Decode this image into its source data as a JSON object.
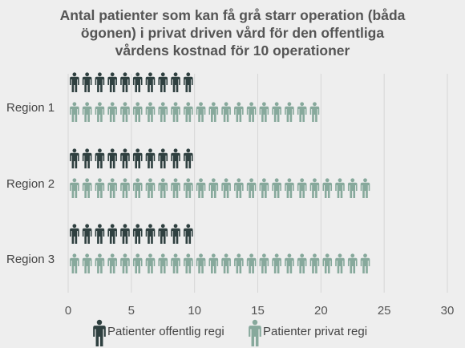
{
  "chart_data": {
    "type": "pictogram-bar",
    "title": [
      "Antal patienter som kan få grå starr operation (båda",
      "ögonen) i privat driven vård för den offentliga",
      "vårdens kostnad för 10 operationer"
    ],
    "categories": [
      "Region 1",
      "Region 2",
      "Region 3"
    ],
    "series": [
      {
        "name": "Patienter offentlig regi",
        "color": "#2f4040",
        "values": [
          10,
          10,
          10
        ]
      },
      {
        "name": "Patienter privat regi",
        "color": "#87a99c",
        "values": [
          20,
          24,
          24
        ]
      }
    ],
    "xlim": [
      0,
      30
    ],
    "xticks": [
      0,
      5,
      10,
      15,
      20,
      25,
      30
    ],
    "grid": "vertical",
    "legend": "bottom"
  }
}
